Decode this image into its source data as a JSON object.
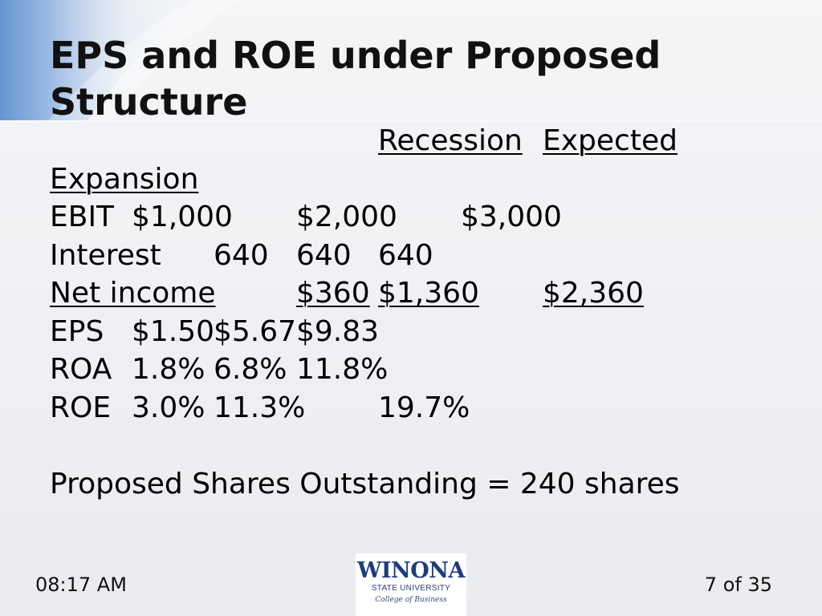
{
  "slide": {
    "title": "EPS and ROE under Proposed Structure",
    "header": {
      "recession": "Recession",
      "expected": "Expected",
      "expansion": "Expansion"
    },
    "rows": {
      "ebit": {
        "label": "EBIT",
        "recession": "$1,000",
        "expected": "$2,000",
        "expansion": "$3,000"
      },
      "interest": {
        "label": "Interest",
        "recession": "640",
        "expected": "640",
        "expansion": "640"
      },
      "net_income": {
        "label": "Net income",
        "recession": "$360",
        "expected": "$1,360",
        "expansion": "$2,360"
      },
      "eps": {
        "label": "EPS",
        "recession": "$1.50",
        "expected": "$5.67",
        "expansion": "$9.83"
      },
      "roa": {
        "label": "ROA",
        "recession": "1.8%",
        "expected": "6.8%",
        "expansion": "11.8%"
      },
      "roe": {
        "label": "ROE",
        "recession": "3.0%",
        "expected": "11.3%",
        "expansion": "19.7%"
      }
    },
    "note": "Proposed Shares Outstanding = 240 shares"
  },
  "footer": {
    "time": "08:17 AM",
    "page": "7 of 35",
    "logo": {
      "name": "WINONA",
      "subtitle": "STATE UNIVERSITY",
      "college": "College of Business"
    }
  },
  "colors": {
    "swoosh": "#7ea6d9",
    "logo_blue": "#1e3c82"
  }
}
